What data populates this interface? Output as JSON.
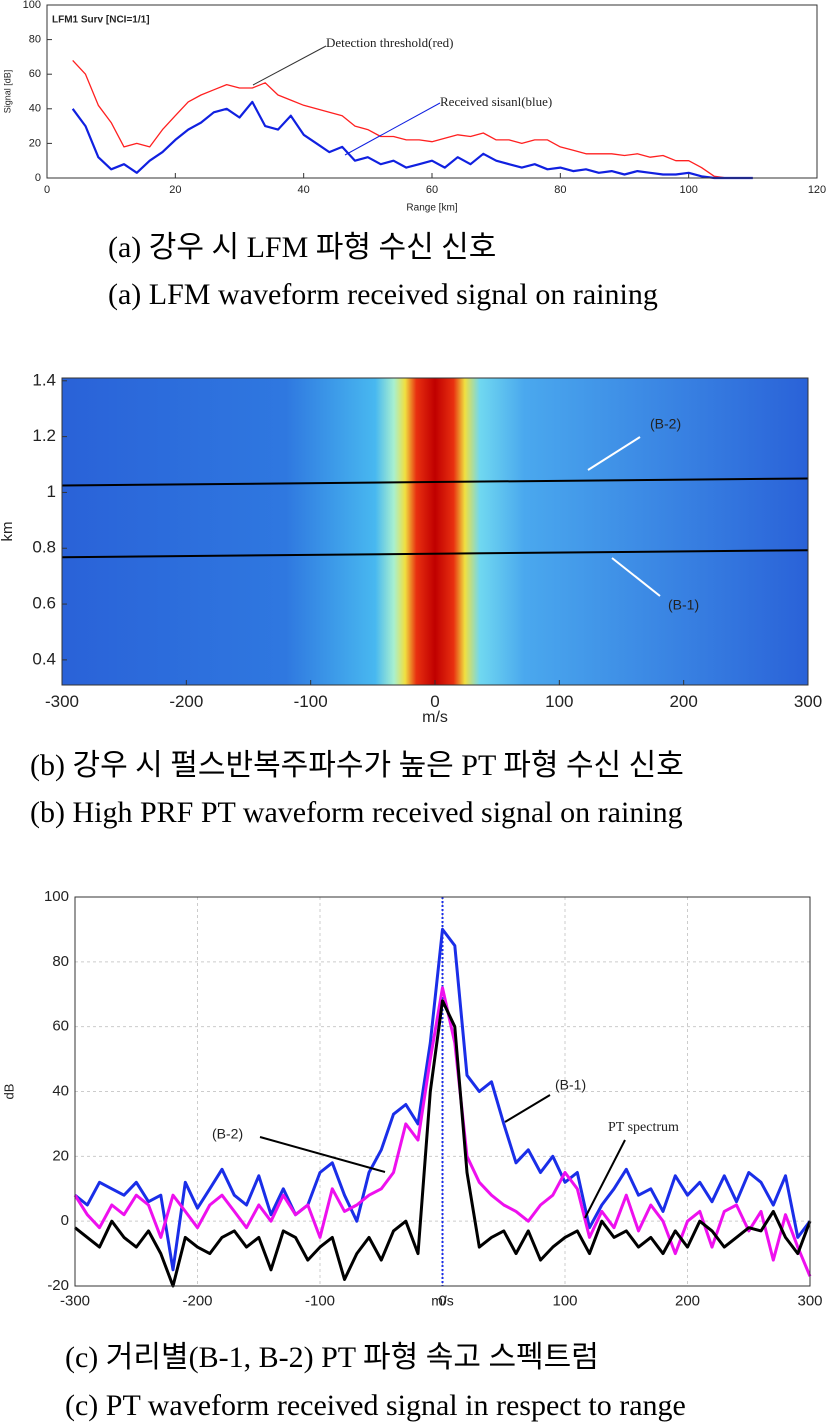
{
  "chart_data": [
    {
      "type": "line",
      "title": "LFM1  Surv [NCI=1/1]",
      "xlabel": "Range [km]",
      "ylabel": "Signal [dB]",
      "xlim": [
        0,
        120
      ],
      "xticks": [
        0,
        20,
        40,
        60,
        80,
        100,
        120
      ],
      "ylim": [
        0,
        100
      ],
      "yticks": [
        0,
        20,
        40,
        60,
        80,
        100
      ],
      "grid": false,
      "annotations": [
        "Detection threshold(red)",
        "Received sisanl(blue)"
      ],
      "caption": [
        "(a) 강우 시 LFM 파형 수신 신호",
        "(a) LFM waveform received signal on raining"
      ],
      "x": [
        4,
        6,
        8,
        10,
        12,
        14,
        16,
        18,
        20,
        22,
        24,
        26,
        28,
        30,
        32,
        34,
        36,
        38,
        40,
        42,
        44,
        46,
        48,
        50,
        52,
        54,
        56,
        58,
        60,
        62,
        64,
        66,
        68,
        70,
        72,
        74,
        76,
        78,
        80,
        82,
        84,
        86,
        88,
        90,
        92,
        94,
        96,
        98,
        100,
        102,
        104,
        106,
        108,
        110
      ],
      "series": [
        {
          "name": "Detection threshold",
          "color": "#ff2020",
          "width": 1.3,
          "values": [
            68,
            60,
            42,
            32,
            18,
            20,
            18,
            28,
            36,
            44,
            48,
            51,
            54,
            52,
            52,
            55,
            48,
            45,
            42,
            40,
            38,
            36,
            30,
            28,
            24,
            24,
            22,
            22,
            21,
            23,
            25,
            24,
            26,
            22,
            22,
            20,
            22,
            22,
            18,
            16,
            14,
            14,
            14,
            13,
            14,
            12,
            13,
            10,
            10,
            6,
            1,
            0,
            0,
            0
          ]
        },
        {
          "name": "Received signal",
          "color": "#1020e0",
          "width": 2.2,
          "values": [
            40,
            30,
            12,
            5,
            8,
            3,
            10,
            15,
            22,
            28,
            32,
            38,
            40,
            35,
            44,
            30,
            28,
            36,
            25,
            20,
            15,
            18,
            10,
            12,
            8,
            10,
            6,
            8,
            10,
            6,
            12,
            8,
            14,
            10,
            8,
            6,
            8,
            5,
            6,
            4,
            5,
            3,
            4,
            2,
            4,
            3,
            2,
            2,
            3,
            1,
            0,
            0,
            0,
            0
          ]
        }
      ]
    },
    {
      "type": "heatmap",
      "xlabel": "m/s",
      "ylabel": "km",
      "xlim": [
        -300,
        300
      ],
      "xticks": [
        -300,
        -200,
        -100,
        0,
        100,
        200,
        300
      ],
      "ylim": [
        0.31,
        1.41
      ],
      "yticks": [
        0.4,
        0.6,
        0.8,
        1,
        1.2,
        1.4
      ],
      "grid": false,
      "annotations": [
        "(B-2)",
        "(B-1)"
      ],
      "caption": [
        "(b) 강우 시 펄스반복주파수가 높은 PT 파형 수신 신호",
        "(b) High PRF PT waveform received signal on raining"
      ],
      "x": [
        -300,
        300
      ],
      "series": [
        {
          "name": "B-2",
          "color": "#000000",
          "width": 2,
          "values": [
            1.025,
            1.05
          ]
        },
        {
          "name": "B-1",
          "color": "#000000",
          "width": 2,
          "values": [
            0.768,
            0.793
          ]
        }
      ]
    },
    {
      "type": "line",
      "xlabel": "m/s",
      "ylabel": "dB",
      "xlim": [
        -300,
        300
      ],
      "xticks": [
        -300,
        -200,
        -100,
        0,
        100,
        200,
        300
      ],
      "ylim": [
        -20,
        100
      ],
      "yticks": [
        -20,
        0,
        20,
        40,
        60,
        80,
        100
      ],
      "grid": true,
      "vline": 0,
      "annotations": [
        "(B-1)",
        "(B-2)",
        "PT spectrum"
      ],
      "caption": [
        "(c) 거리별(B-1, B-2) PT 파형 속고 스펙트럼",
        "(c) PT waveform received signal in respect to range"
      ],
      "x": [
        -300,
        -290,
        -280,
        -270,
        -260,
        -250,
        -240,
        -230,
        -220,
        -210,
        -200,
        -190,
        -180,
        -170,
        -160,
        -150,
        -140,
        -130,
        -120,
        -110,
        -100,
        -90,
        -80,
        -70,
        -60,
        -50,
        -40,
        -30,
        -20,
        -10,
        0,
        10,
        20,
        30,
        40,
        50,
        60,
        70,
        80,
        90,
        100,
        110,
        120,
        130,
        140,
        150,
        160,
        170,
        180,
        190,
        200,
        210,
        220,
        230,
        240,
        250,
        260,
        270,
        280,
        290,
        300
      ],
      "series": [
        {
          "name": "B-1",
          "color": "#1a2ee8",
          "width": 3,
          "values": [
            8,
            5,
            12,
            10,
            8,
            12,
            6,
            8,
            -15,
            12,
            4,
            10,
            16,
            8,
            5,
            14,
            2,
            10,
            2,
            5,
            15,
            18,
            8,
            0,
            15,
            22,
            33,
            36,
            30,
            55,
            90,
            85,
            45,
            40,
            43,
            30,
            18,
            22,
            15,
            20,
            12,
            15,
            -2,
            5,
            10,
            16,
            8,
            10,
            3,
            14,
            8,
            12,
            6,
            14,
            6,
            15,
            12,
            5,
            14,
            -5,
            0
          ]
        },
        {
          "name": "B-2",
          "color": "#ee10ee",
          "width": 3,
          "values": [
            8,
            2,
            -2,
            5,
            2,
            8,
            5,
            -5,
            8,
            3,
            -2,
            5,
            8,
            3,
            -2,
            5,
            0,
            8,
            2,
            5,
            -5,
            10,
            3,
            5,
            8,
            10,
            15,
            30,
            25,
            50,
            72,
            55,
            20,
            12,
            8,
            5,
            3,
            0,
            5,
            8,
            15,
            10,
            -5,
            3,
            -2,
            8,
            -3,
            5,
            0,
            -10,
            0,
            3,
            -8,
            3,
            5,
            -3,
            3,
            -12,
            2,
            -8,
            -17
          ]
        },
        {
          "name": "PT spectrum",
          "color": "#000000",
          "width": 3,
          "values": [
            -2,
            -5,
            -8,
            0,
            -5,
            -8,
            -3,
            -10,
            -20,
            -5,
            -8,
            -10,
            -5,
            -3,
            -8,
            -5,
            -15,
            -3,
            -5,
            -12,
            -8,
            -5,
            -18,
            -10,
            -5,
            -12,
            -3,
            0,
            -10,
            40,
            68,
            60,
            15,
            -8,
            -5,
            -3,
            -10,
            -3,
            -12,
            -8,
            -5,
            -3,
            -10,
            0,
            -5,
            -3,
            -8,
            -5,
            -10,
            -3,
            -8,
            0,
            -3,
            -8,
            -5,
            -2,
            -3,
            3,
            -5,
            -10,
            0
          ]
        }
      ]
    }
  ]
}
